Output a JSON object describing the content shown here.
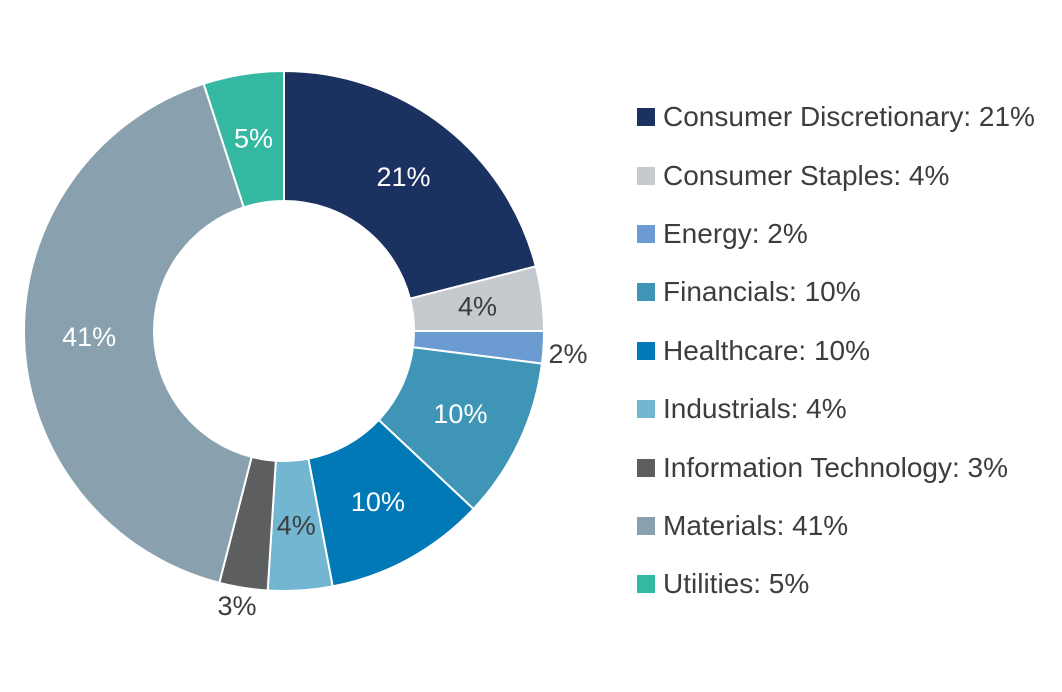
{
  "chart_data": {
    "type": "pie",
    "donut": true,
    "legend_position": "right",
    "slices": [
      {
        "name": "Consumer Discretionary",
        "value": 21,
        "label": "21%",
        "legend": "Consumer Discretionary: 21%",
        "color": "#1b3260",
        "label_color": "#ffffff",
        "label_outside": false
      },
      {
        "name": "Consumer Staples",
        "value": 4,
        "label": "4%",
        "legend": "Consumer Staples: 4%",
        "color": "#c5cace",
        "label_color": "#3d3d3d",
        "label_outside": false
      },
      {
        "name": "Energy",
        "value": 2,
        "label": "2%",
        "legend": "Energy: 2%",
        "color": "#6b9bd1",
        "label_color": "#3d3d3d",
        "label_outside": true
      },
      {
        "name": "Financials",
        "value": 10,
        "label": "10%",
        "legend": "Financials: 10%",
        "color": "#3f95b6",
        "label_color": "#ffffff",
        "label_outside": false
      },
      {
        "name": "Healthcare",
        "value": 10,
        "label": "10%",
        "legend": "Healthcare: 10%",
        "color": "#0079b6",
        "label_color": "#ffffff",
        "label_outside": false
      },
      {
        "name": "Industrials",
        "value": 4,
        "label": "4%",
        "legend": "Industrials: 4%",
        "color": "#72b6d2",
        "label_color": "#3d3d3d",
        "label_outside": false
      },
      {
        "name": "Information Technology",
        "value": 3,
        "label": "3%",
        "legend": "Information Technology: 3%",
        "color": "#5d5e5f",
        "label_color": "#3d3d3d",
        "label_outside": true
      },
      {
        "name": "Materials",
        "value": 41,
        "label": "41%",
        "legend": "Materials: 41%",
        "color": "#89a1ae",
        "label_color": "#ffffff",
        "label_outside": false
      },
      {
        "name": "Utilities",
        "value": 5,
        "label": "5%",
        "legend": "Utilities: 5%",
        "color": "#35b8a2",
        "label_color": "#ffffff",
        "label_outside": false
      }
    ]
  }
}
